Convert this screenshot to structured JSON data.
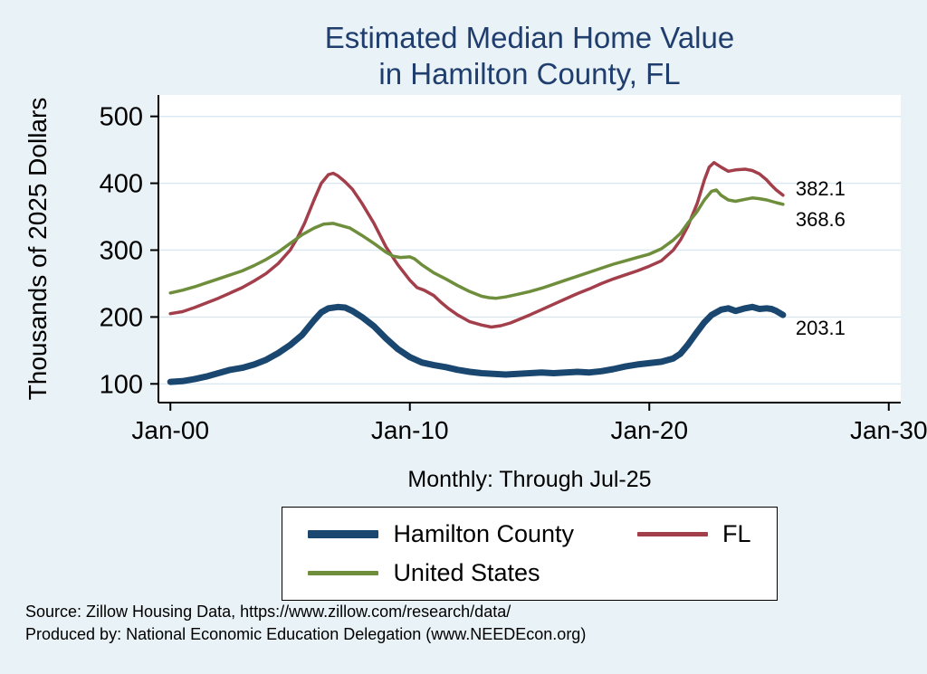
{
  "title": {
    "line1": "Estimated Median Home Value",
    "line2": "in Hamilton County, FL"
  },
  "y_axis_label": "Thousands of 2025 Dollars",
  "x_caption": "Monthly: Through Jul-25",
  "footer": {
    "line1": "Source: Zillow Housing Data, https://www.zillow.com/research/data/",
    "line2": "Produced by: National Economic Education Delegation (www.NEEDEcon.org)"
  },
  "chart_data": {
    "type": "line",
    "title": "Estimated Median Home Value in Hamilton County, FL",
    "xlabel": "Monthly: Through Jul-25",
    "ylabel": "Thousands of 2025 Dollars",
    "xlim": [
      1999.5,
      2030.5
    ],
    "ylim": [
      72,
      532
    ],
    "grid": true,
    "grid_color": "#d8e7f0",
    "background_color": "#ffffff",
    "page_color": "#e9f2f6",
    "legend_position": "bottom-center",
    "x_ticks": [
      {
        "value": 2000,
        "label": "Jan-00"
      },
      {
        "value": 2010,
        "label": "Jan-10"
      },
      {
        "value": 2020,
        "label": "Jan-20"
      },
      {
        "value": 2030,
        "label": "Jan-30"
      }
    ],
    "y_ticks": [
      100,
      200,
      300,
      400,
      500
    ],
    "series": [
      {
        "name": "Hamilton County",
        "color": "#1a476f",
        "line_width": 7,
        "end_label": "203.1",
        "label_dy": 14,
        "points": [
          [
            2000,
            103
          ],
          [
            2000.5,
            104
          ],
          [
            2001,
            107
          ],
          [
            2001.5,
            111
          ],
          [
            2002,
            116
          ],
          [
            2002.5,
            121
          ],
          [
            2003,
            124
          ],
          [
            2003.5,
            129
          ],
          [
            2004,
            136
          ],
          [
            2004.5,
            146
          ],
          [
            2005,
            158
          ],
          [
            2005.5,
            173
          ],
          [
            2006,
            195
          ],
          [
            2006.3,
            207
          ],
          [
            2006.6,
            213
          ],
          [
            2007,
            215
          ],
          [
            2007.3,
            214
          ],
          [
            2007.6,
            209
          ],
          [
            2008,
            200
          ],
          [
            2008.5,
            186
          ],
          [
            2009,
            168
          ],
          [
            2009.5,
            152
          ],
          [
            2010,
            140
          ],
          [
            2010.5,
            132
          ],
          [
            2011,
            128
          ],
          [
            2011.5,
            125
          ],
          [
            2012,
            121
          ],
          [
            2012.5,
            118
          ],
          [
            2013,
            116
          ],
          [
            2013.5,
            115
          ],
          [
            2014,
            114
          ],
          [
            2014.5,
            115
          ],
          [
            2015,
            116
          ],
          [
            2015.5,
            117
          ],
          [
            2016,
            116
          ],
          [
            2016.5,
            117
          ],
          [
            2017,
            118
          ],
          [
            2017.5,
            117
          ],
          [
            2018,
            119
          ],
          [
            2018.5,
            122
          ],
          [
            2019,
            126
          ],
          [
            2019.5,
            129
          ],
          [
            2020,
            131
          ],
          [
            2020.5,
            133
          ],
          [
            2021,
            138
          ],
          [
            2021.3,
            145
          ],
          [
            2021.6,
            158
          ],
          [
            2022,
            178
          ],
          [
            2022.3,
            192
          ],
          [
            2022.6,
            203
          ],
          [
            2023,
            211
          ],
          [
            2023.3,
            213
          ],
          [
            2023.6,
            209
          ],
          [
            2024,
            213
          ],
          [
            2024.3,
            215
          ],
          [
            2024.6,
            212
          ],
          [
            2024.9,
            213
          ],
          [
            2025.1,
            212
          ],
          [
            2025.3,
            209
          ],
          [
            2025.58,
            203.1
          ]
        ]
      },
      {
        "name": "FL",
        "color": "#a33e4b",
        "line_width": 3.5,
        "end_label": "382.1",
        "label_dy": -8,
        "points": [
          [
            2000,
            205
          ],
          [
            2000.5,
            208
          ],
          [
            2001,
            214
          ],
          [
            2001.5,
            221
          ],
          [
            2002,
            228
          ],
          [
            2002.5,
            236
          ],
          [
            2003,
            244
          ],
          [
            2003.5,
            254
          ],
          [
            2004,
            265
          ],
          [
            2004.5,
            280
          ],
          [
            2005,
            300
          ],
          [
            2005.3,
            318
          ],
          [
            2005.6,
            340
          ],
          [
            2006,
            375
          ],
          [
            2006.3,
            400
          ],
          [
            2006.6,
            413
          ],
          [
            2006.8,
            415
          ],
          [
            2007,
            411
          ],
          [
            2007.3,
            402
          ],
          [
            2007.6,
            391
          ],
          [
            2008,
            370
          ],
          [
            2008.5,
            340
          ],
          [
            2009,
            305
          ],
          [
            2009.5,
            278
          ],
          [
            2010,
            255
          ],
          [
            2010.3,
            244
          ],
          [
            2010.6,
            240
          ],
          [
            2011,
            232
          ],
          [
            2011.3,
            222
          ],
          [
            2011.6,
            213
          ],
          [
            2012,
            203
          ],
          [
            2012.5,
            193
          ],
          [
            2013,
            188
          ],
          [
            2013.4,
            185
          ],
          [
            2013.8,
            187
          ],
          [
            2014.2,
            191
          ],
          [
            2014.6,
            197
          ],
          [
            2015,
            203
          ],
          [
            2015.5,
            211
          ],
          [
            2016,
            219
          ],
          [
            2016.5,
            227
          ],
          [
            2017,
            235
          ],
          [
            2017.5,
            242
          ],
          [
            2018,
            250
          ],
          [
            2018.5,
            257
          ],
          [
            2019,
            263
          ],
          [
            2019.5,
            269
          ],
          [
            2020,
            276
          ],
          [
            2020.5,
            284
          ],
          [
            2021,
            300
          ],
          [
            2021.3,
            315
          ],
          [
            2021.6,
            335
          ],
          [
            2022,
            370
          ],
          [
            2022.3,
            405
          ],
          [
            2022.5,
            424
          ],
          [
            2022.7,
            431
          ],
          [
            2023,
            424
          ],
          [
            2023.3,
            418
          ],
          [
            2023.6,
            420
          ],
          [
            2024,
            421
          ],
          [
            2024.3,
            419
          ],
          [
            2024.6,
            414
          ],
          [
            2024.9,
            405
          ],
          [
            2025.1,
            397
          ],
          [
            2025.3,
            390
          ],
          [
            2025.58,
            382.1
          ]
        ]
      },
      {
        "name": "United States",
        "color": "#6e8e3c",
        "line_width": 3.5,
        "end_label": "368.6",
        "label_dy": 16,
        "points": [
          [
            2000,
            236
          ],
          [
            2000.5,
            240
          ],
          [
            2001,
            245
          ],
          [
            2001.5,
            251
          ],
          [
            2002,
            257
          ],
          [
            2002.5,
            263
          ],
          [
            2003,
            269
          ],
          [
            2003.5,
            277
          ],
          [
            2004,
            286
          ],
          [
            2004.5,
            297
          ],
          [
            2005,
            310
          ],
          [
            2005.5,
            323
          ],
          [
            2006,
            333
          ],
          [
            2006.4,
            339
          ],
          [
            2006.8,
            340
          ],
          [
            2007,
            338
          ],
          [
            2007.5,
            333
          ],
          [
            2008,
            322
          ],
          [
            2008.5,
            310
          ],
          [
            2009,
            297
          ],
          [
            2009.3,
            291
          ],
          [
            2009.6,
            289
          ],
          [
            2010,
            290
          ],
          [
            2010.2,
            287
          ],
          [
            2010.5,
            278
          ],
          [
            2011,
            266
          ],
          [
            2011.5,
            257
          ],
          [
            2012,
            247
          ],
          [
            2012.5,
            238
          ],
          [
            2013,
            231
          ],
          [
            2013.3,
            229
          ],
          [
            2013.6,
            228
          ],
          [
            2014,
            230
          ],
          [
            2014.5,
            234
          ],
          [
            2015,
            238
          ],
          [
            2015.5,
            243
          ],
          [
            2016,
            249
          ],
          [
            2016.5,
            255
          ],
          [
            2017,
            261
          ],
          [
            2017.5,
            267
          ],
          [
            2018,
            273
          ],
          [
            2018.5,
            279
          ],
          [
            2019,
            284
          ],
          [
            2019.5,
            289
          ],
          [
            2020,
            294
          ],
          [
            2020.5,
            302
          ],
          [
            2021,
            315
          ],
          [
            2021.3,
            325
          ],
          [
            2021.6,
            340
          ],
          [
            2022,
            358
          ],
          [
            2022.3,
            375
          ],
          [
            2022.6,
            388
          ],
          [
            2022.8,
            390
          ],
          [
            2023,
            382
          ],
          [
            2023.3,
            375
          ],
          [
            2023.6,
            373
          ],
          [
            2024,
            376
          ],
          [
            2024.3,
            378
          ],
          [
            2024.6,
            377
          ],
          [
            2024.9,
            375
          ],
          [
            2025.1,
            373
          ],
          [
            2025.3,
            371
          ],
          [
            2025.58,
            368.6
          ]
        ]
      }
    ]
  }
}
